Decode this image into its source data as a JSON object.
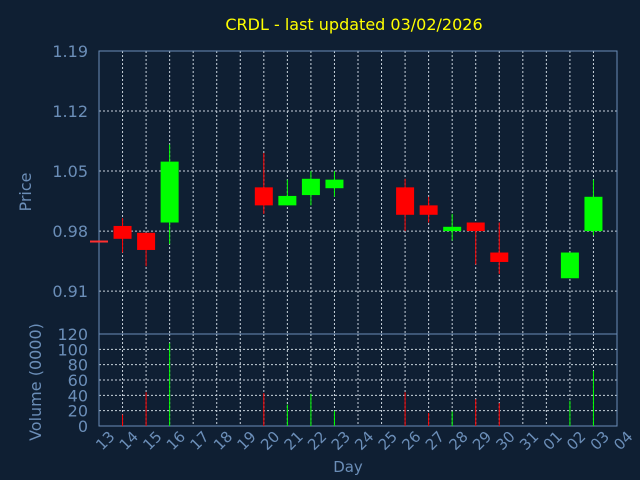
{
  "colors": {
    "background": "#0f1f33",
    "axis": "#6b8eb8",
    "grid": "#c8d2dc",
    "title": "#ffff00",
    "up": "#00ff00",
    "down": "#ff0000",
    "label": "#6b8eb8",
    "flat": "#ff3030"
  },
  "chart_data": [
    {
      "type": "candlestick",
      "title": "CRDL - last updated 03/02/2026",
      "ylabel": "Price",
      "ylim": [
        0.86,
        1.19
      ],
      "yticks": [
        "1.19",
        "1.12",
        "1.05",
        "0.98",
        "0.91"
      ],
      "ytick_values": [
        1.19,
        1.12,
        1.05,
        0.98,
        0.91
      ],
      "grid": true,
      "x": [
        "13",
        "14",
        "15",
        "16",
        "17",
        "18",
        "19",
        "20",
        "21",
        "22",
        "23",
        "24",
        "25",
        "26",
        "27",
        "28",
        "29",
        "30",
        "31",
        "01",
        "02",
        "03",
        "04"
      ],
      "candles": [
        {
          "x": "13",
          "open": 0.969,
          "high": 0.969,
          "low": 0.969,
          "close": 0.969
        },
        {
          "x": "14",
          "open": 0.986,
          "high": 0.995,
          "low": 0.955,
          "close": 0.971
        },
        {
          "x": "15",
          "open": 0.978,
          "high": 0.978,
          "low": 0.939,
          "close": 0.958
        },
        {
          "x": "16",
          "open": 0.99,
          "high": 1.081,
          "low": 0.965,
          "close": 1.061
        },
        {
          "x": "20",
          "open": 1.031,
          "high": 1.071,
          "low": 1.0,
          "close": 1.01
        },
        {
          "x": "21",
          "open": 1.01,
          "high": 1.04,
          "low": 1.01,
          "close": 1.021
        },
        {
          "x": "22",
          "open": 1.022,
          "high": 1.05,
          "low": 1.01,
          "close": 1.041
        },
        {
          "x": "23",
          "open": 1.03,
          "high": 1.05,
          "low": 1.02,
          "close": 1.04
        },
        {
          "x": "26",
          "open": 1.031,
          "high": 1.041,
          "low": 0.98,
          "close": 0.999
        },
        {
          "x": "27",
          "open": 1.01,
          "high": 1.02,
          "low": 0.99,
          "close": 0.999
        },
        {
          "x": "28",
          "open": 0.98,
          "high": 1.0,
          "low": 0.969,
          "close": 0.985
        },
        {
          "x": "29",
          "open": 0.99,
          "high": 0.99,
          "low": 0.941,
          "close": 0.98
        },
        {
          "x": "30",
          "open": 0.955,
          "high": 0.99,
          "low": 0.93,
          "close": 0.944
        },
        {
          "x": "02",
          "open": 0.925,
          "high": 0.955,
          "low": 0.925,
          "close": 0.955
        },
        {
          "x": "03",
          "open": 0.98,
          "high": 1.04,
          "low": 0.975,
          "close": 1.02
        }
      ]
    },
    {
      "type": "bar",
      "ylabel": "Volume (0000)",
      "xlabel": "Day",
      "ylim": [
        0,
        120
      ],
      "yticks": [
        "120",
        "100",
        "80",
        "60",
        "40",
        "20",
        "0"
      ],
      "ytick_values": [
        120,
        100,
        80,
        60,
        40,
        20,
        0
      ],
      "grid": true,
      "x": [
        "13",
        "14",
        "15",
        "16",
        "17",
        "18",
        "19",
        "20",
        "21",
        "22",
        "23",
        "24",
        "25",
        "26",
        "27",
        "28",
        "29",
        "30",
        "31",
        "01",
        "02",
        "03",
        "04"
      ],
      "volumes": [
        {
          "x": "14",
          "value": 15,
          "dir": "down"
        },
        {
          "x": "15",
          "value": 44,
          "dir": "down"
        },
        {
          "x": "16",
          "value": 108,
          "dir": "up"
        },
        {
          "x": "20",
          "value": 43,
          "dir": "down"
        },
        {
          "x": "21",
          "value": 28,
          "dir": "up"
        },
        {
          "x": "22",
          "value": 42,
          "dir": "up"
        },
        {
          "x": "23",
          "value": 20,
          "dir": "up"
        },
        {
          "x": "26",
          "value": 44,
          "dir": "down"
        },
        {
          "x": "27",
          "value": 17,
          "dir": "down"
        },
        {
          "x": "28",
          "value": 19,
          "dir": "up"
        },
        {
          "x": "29",
          "value": 35,
          "dir": "down"
        },
        {
          "x": "30",
          "value": 30,
          "dir": "down"
        },
        {
          "x": "02",
          "value": 33,
          "dir": "up"
        },
        {
          "x": "03",
          "value": 72,
          "dir": "up"
        }
      ]
    }
  ]
}
